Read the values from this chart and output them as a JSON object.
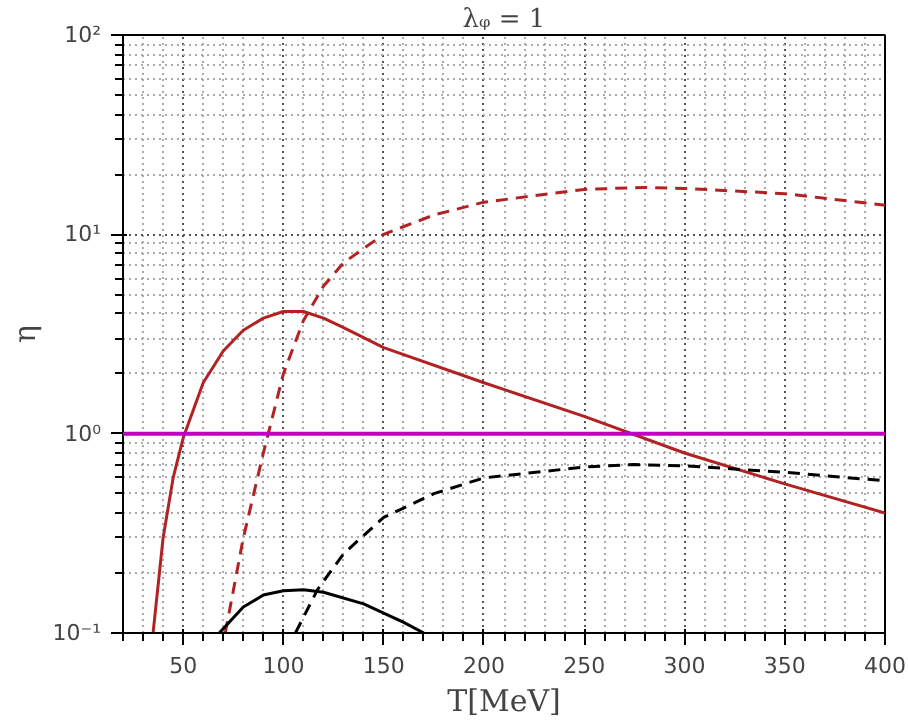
{
  "chart_data": {
    "type": "line",
    "title": "λᵩ = 1",
    "xlabel": "T[MeV]",
    "ylabel": "η",
    "log": "y",
    "grid": true,
    "xlim": [
      20,
      400
    ],
    "ylim": [
      0.1,
      100
    ],
    "xticks": [
      50,
      100,
      150,
      200,
      250,
      300,
      350,
      400
    ],
    "yticks": [
      {
        "value": 0.1,
        "label": "10⁻¹"
      },
      {
        "value": 1,
        "label": "10⁰"
      },
      {
        "value": 10,
        "label": "10¹"
      },
      {
        "value": 100,
        "label": "10²"
      }
    ],
    "ref_lines": [
      {
        "axis": "y",
        "value": 1,
        "label": null,
        "color": "#bf00bf"
      }
    ],
    "series": [
      {
        "color": "#b22222",
        "line_style": "solid",
        "x": [
          35,
          40,
          45,
          50,
          60,
          70,
          80,
          90,
          100,
          110,
          120,
          130,
          150,
          200,
          250,
          300,
          350,
          400
        ],
        "values": [
          0.1,
          0.3,
          0.6,
          0.95,
          1.8,
          2.6,
          3.3,
          3.8,
          4.1,
          4.1,
          3.8,
          3.4,
          2.7,
          1.8,
          1.22,
          0.8,
          0.56,
          0.4
        ]
      },
      {
        "color": "#b22222",
        "line_style": "dashed",
        "x": [
          71,
          80,
          90,
          100,
          110,
          120,
          130,
          150,
          175,
          200,
          250,
          280,
          300,
          350,
          400
        ],
        "values": [
          0.1,
          0.3,
          0.8,
          2,
          3.7,
          5.5,
          7.2,
          10,
          12.5,
          14.5,
          16.8,
          17.2,
          17,
          16,
          14
        ]
      },
      {
        "color": "#000000",
        "line_style": "solid",
        "x": [
          68,
          80,
          90,
          100,
          110,
          120,
          140,
          160,
          170
        ],
        "values": [
          0.1,
          0.135,
          0.155,
          0.163,
          0.165,
          0.16,
          0.14,
          0.113,
          0.1
        ]
      },
      {
        "color": "#000000",
        "line_style": "dashed",
        "x": [
          106,
          117,
          130,
          150,
          175,
          200,
          250,
          275,
          300,
          350,
          400
        ],
        "values": [
          0.1,
          0.165,
          0.25,
          0.38,
          0.5,
          0.6,
          0.68,
          0.7,
          0.69,
          0.64,
          0.58
        ]
      }
    ]
  }
}
